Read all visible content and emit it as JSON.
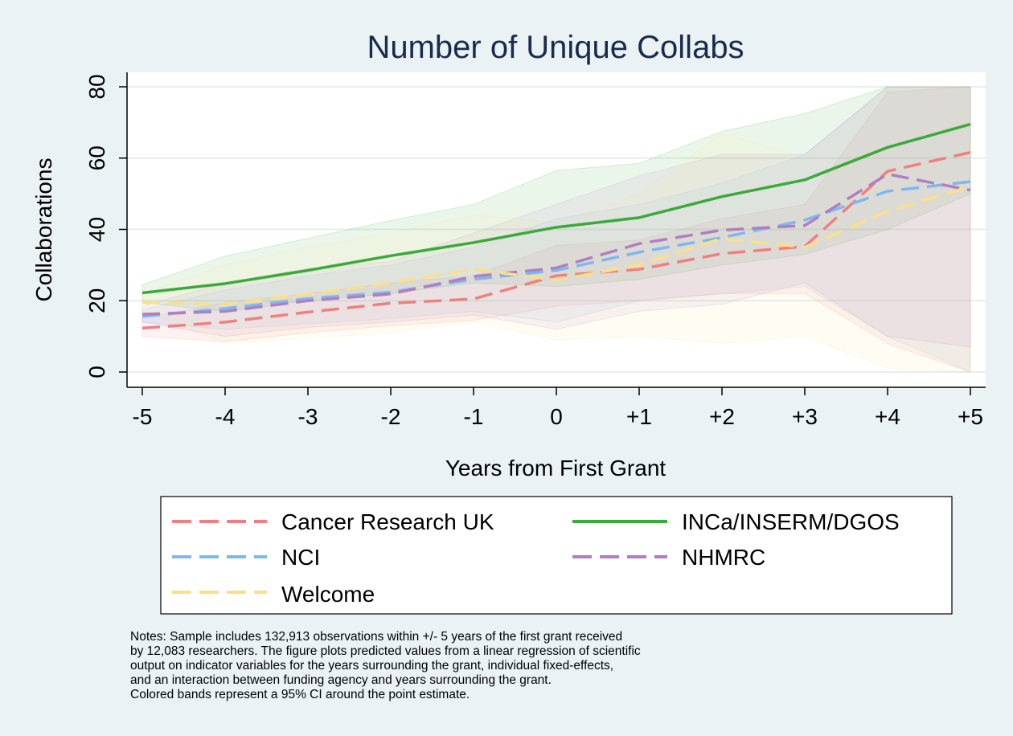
{
  "chart_data": {
    "type": "line",
    "title": "Number of Unique Collabs",
    "xlabel": "Years from First Grant",
    "ylabel": "Collaborations",
    "categories": [
      "-5",
      "-4",
      "-3",
      "-2",
      "-1",
      "0",
      "+1",
      "+2",
      "+3",
      "+4",
      "+5"
    ],
    "ylim": [
      0,
      80
    ],
    "yticks": [
      "0",
      "20",
      "40",
      "60",
      "80"
    ],
    "grid": true,
    "legend_position": "bottom",
    "series": [
      {
        "name": "Cancer Research UK",
        "color": "#f08080",
        "dash": "dashed",
        "values": [
          12.3,
          14,
          16.8,
          19.3,
          20.5,
          27,
          28.8,
          33.2,
          35.2,
          56.3,
          61.6
        ],
        "ci_lower": [
          10,
          8.5,
          11,
          13,
          14.5,
          18.5,
          20,
          22,
          22,
          8,
          0
        ],
        "ci_upper": [
          15,
          19.5,
          22,
          25,
          27,
          35.5,
          37,
          43,
          47,
          78.5,
          80
        ]
      },
      {
        "name": "INCa/INSERM/DGOS",
        "color": "#3aaa3a",
        "dash": "solid",
        "values": [
          22.2,
          24.8,
          28.5,
          32.6,
          36.3,
          40.6,
          43.3,
          49.2,
          53.9,
          63,
          69.5
        ],
        "ci_lower": [
          19.5,
          17,
          20,
          22,
          25,
          24,
          26,
          30,
          33,
          40,
          50
        ],
        "ci_upper": [
          24.5,
          32.5,
          37.5,
          42.5,
          47,
          56.5,
          58.5,
          67.5,
          72.5,
          80,
          80
        ]
      },
      {
        "name": "NCI",
        "color": "#7fb8f0",
        "dash": "dashed",
        "values": [
          15.6,
          17.8,
          20.6,
          22.4,
          26,
          28.5,
          33.6,
          37.7,
          42.6,
          50.7,
          53.4
        ],
        "ci_lower": [
          14,
          12,
          13.5,
          15,
          17,
          14,
          20,
          22,
          24,
          10,
          0
        ],
        "ci_upper": [
          17.5,
          23,
          27,
          30,
          35,
          43,
          47,
          53,
          61,
          80,
          80
        ]
      },
      {
        "name": "NHMRC",
        "color": "#b07fc0",
        "dash": "dashed",
        "values": [
          16.2,
          17,
          20,
          21.9,
          26.8,
          29.2,
          36,
          39.8,
          41.1,
          55.5,
          51
        ],
        "ci_lower": [
          14,
          10,
          12.5,
          14,
          16,
          12,
          17,
          19,
          25,
          10,
          7
        ],
        "ci_upper": [
          18.5,
          25,
          29,
          31,
          39,
          47,
          55,
          61,
          61,
          80,
          80
        ]
      },
      {
        "name": "Welcome",
        "color": "#fbe08a",
        "dash": "dashed",
        "values": [
          19.5,
          19,
          21.8,
          25,
          28.8,
          25.8,
          30,
          37.5,
          35,
          45.1,
          52
        ],
        "ci_lower": [
          17,
          8,
          9.5,
          11,
          14,
          9,
          10,
          8,
          10,
          1,
          0
        ],
        "ci_upper": [
          22,
          30,
          35,
          39,
          44,
          42,
          50,
          67,
          60,
          80,
          80
        ]
      }
    ]
  },
  "legend": {
    "items": [
      "Cancer Research UK",
      "INCa/INSERM/DGOS",
      "NCI",
      "NHMRC",
      "Welcome"
    ]
  },
  "notes": [
    "Notes: Sample includes 132,913 observations within +/- 5 years of the first grant received",
    "by 12,083 researchers. The figure plots predicted values from a linear regression of scientific",
    "output on indicator variables for the years surrounding the grant, individual fixed-effects,",
    "and an interaction between funding agency and years surrounding the grant.",
    "Colored bands represent a 95% CI around the point estimate."
  ]
}
